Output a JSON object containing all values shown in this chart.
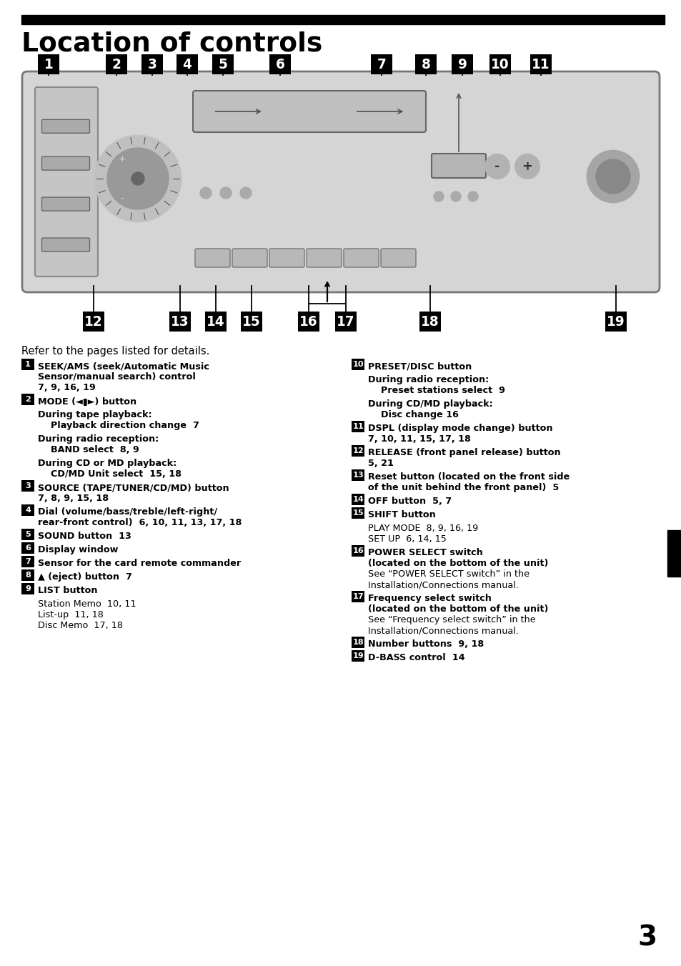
{
  "title": "Location of controls",
  "page_number": "3",
  "refer_text": "Refer to the pages listed for details.",
  "background_color": "#ffffff",
  "left_items": [
    {
      "num": "1",
      "lines": [
        {
          "text": "SEEK/AMS (seek/Automatic Music",
          "bold": true
        },
        {
          "text": "Sensor/manual search) control",
          "bold": true
        },
        {
          "text": "7, 9, 16, 19",
          "bold": true
        }
      ]
    },
    {
      "num": "2",
      "lines": [
        {
          "text": "MODE (◄▮►) button",
          "bold": true
        }
      ]
    },
    {
      "num": "",
      "sub": true,
      "lines": [
        {
          "text": "During tape playback:",
          "bold": true
        },
        {
          "text": "    Playback direction change  7",
          "bold": true
        }
      ]
    },
    {
      "num": "",
      "sub": true,
      "lines": [
        {
          "text": "During radio reception:",
          "bold": true
        },
        {
          "text": "    BAND select  8, 9",
          "bold": true
        }
      ]
    },
    {
      "num": "",
      "sub": true,
      "lines": [
        {
          "text": "During CD or MD playback:",
          "bold": true
        },
        {
          "text": "    CD/MD Unit select  15, 18",
          "bold": true
        }
      ]
    },
    {
      "num": "3",
      "lines": [
        {
          "text": "SOURCE (TAPE/TUNER/CD/MD) button",
          "bold": true
        },
        {
          "text": "7, 8, 9, 15, 18",
          "bold": true
        }
      ]
    },
    {
      "num": "4",
      "lines": [
        {
          "text": "Dial (volume/bass/treble/left-right/",
          "bold": true
        },
        {
          "text": "rear-front control)  6, 10, 11, 13, 17, 18",
          "bold": true
        }
      ]
    },
    {
      "num": "5",
      "lines": [
        {
          "text": "SOUND button  13",
          "bold": true
        }
      ]
    },
    {
      "num": "6",
      "lines": [
        {
          "text": "Display window",
          "bold": true
        }
      ]
    },
    {
      "num": "7",
      "lines": [
        {
          "text": "Sensor for the card remote commander",
          "bold": true
        }
      ]
    },
    {
      "num": "8",
      "lines": [
        {
          "text": "▲ (eject) button  7",
          "bold": true
        }
      ]
    },
    {
      "num": "9",
      "lines": [
        {
          "text": "LIST button",
          "bold": true
        }
      ]
    },
    {
      "num": "",
      "sub": true,
      "lines": [
        {
          "text": "Station Memo  10, 11",
          "bold": false
        },
        {
          "text": "List-up  11, 18",
          "bold": false
        },
        {
          "text": "Disc Memo  17, 18",
          "bold": false
        }
      ]
    }
  ],
  "right_items": [
    {
      "num": "10",
      "lines": [
        {
          "text": "PRESET/DISC button",
          "bold": true
        }
      ]
    },
    {
      "num": "",
      "sub": true,
      "lines": [
        {
          "text": "During radio reception:",
          "bold": true
        },
        {
          "text": "    Preset stations select  9",
          "bold": true
        }
      ]
    },
    {
      "num": "",
      "sub": true,
      "lines": [
        {
          "text": "During CD/MD playback:",
          "bold": true
        },
        {
          "text": "    Disc change 16",
          "bold": true
        }
      ]
    },
    {
      "num": "11",
      "lines": [
        {
          "text": "DSPL (display mode change) button",
          "bold": true
        },
        {
          "text": "7, 10, 11, 15, 17, 18",
          "bold": true
        }
      ]
    },
    {
      "num": "12",
      "lines": [
        {
          "text": "RELEASE (front panel release) button",
          "bold": true
        },
        {
          "text": "5, 21",
          "bold": true
        }
      ]
    },
    {
      "num": "13",
      "lines": [
        {
          "text": "Reset button (located on the front side",
          "bold": true
        },
        {
          "text": "of the unit behind the front panel)  5",
          "bold": true
        }
      ]
    },
    {
      "num": "14",
      "lines": [
        {
          "text": "OFF button  5, 7",
          "bold": true
        }
      ]
    },
    {
      "num": "15",
      "lines": [
        {
          "text": "SHIFT button",
          "bold": true
        }
      ]
    },
    {
      "num": "",
      "sub": true,
      "lines": [
        {
          "text": "PLAY MODE  8, 9, 16, 19",
          "bold": false
        },
        {
          "text": "SET UP  6, 14, 15",
          "bold": false
        }
      ]
    },
    {
      "num": "16",
      "lines": [
        {
          "text": "POWER SELECT switch",
          "bold": true
        },
        {
          "text": "(located on the bottom of the unit)",
          "bold": true
        },
        {
          "text": "See “POWER SELECT switch” in the",
          "bold": false
        },
        {
          "text": "Installation/Connections manual.",
          "bold": false
        }
      ]
    },
    {
      "num": "17",
      "lines": [
        {
          "text": "Frequency select switch",
          "bold": true
        },
        {
          "text": "(located on the bottom of the unit)",
          "bold": true
        },
        {
          "text": "See “Frequency select switch” in the",
          "bold": false
        },
        {
          "text": "Installation/Connections manual.",
          "bold": false
        }
      ]
    },
    {
      "num": "18",
      "lines": [
        {
          "text": "Number buttons  9, 18",
          "bold": true
        }
      ]
    },
    {
      "num": "19",
      "lines": [
        {
          "text": "D-BASS control  14",
          "bold": true
        }
      ]
    }
  ],
  "top_badges": [
    [
      "1",
      68
    ],
    [
      "2",
      163
    ],
    [
      "3",
      213
    ],
    [
      "4",
      262
    ],
    [
      "5",
      312
    ],
    [
      "6",
      392
    ],
    [
      "7",
      534
    ],
    [
      "8",
      596
    ],
    [
      "9",
      647
    ],
    [
      "10",
      700
    ],
    [
      "11",
      757
    ]
  ],
  "top_conn_x": [
    68,
    163,
    213,
    262,
    312,
    392,
    534,
    596,
    647,
    700,
    757
  ],
  "bot_badges": [
    [
      "12",
      131
    ],
    [
      "13",
      252
    ],
    [
      "14",
      302
    ],
    [
      "15",
      352
    ],
    [
      "16",
      432
    ],
    [
      "17",
      484
    ],
    [
      "18",
      602
    ],
    [
      "19",
      862
    ]
  ],
  "bot_conn_x": [
    131,
    252,
    302,
    352,
    432,
    484,
    602,
    862
  ]
}
